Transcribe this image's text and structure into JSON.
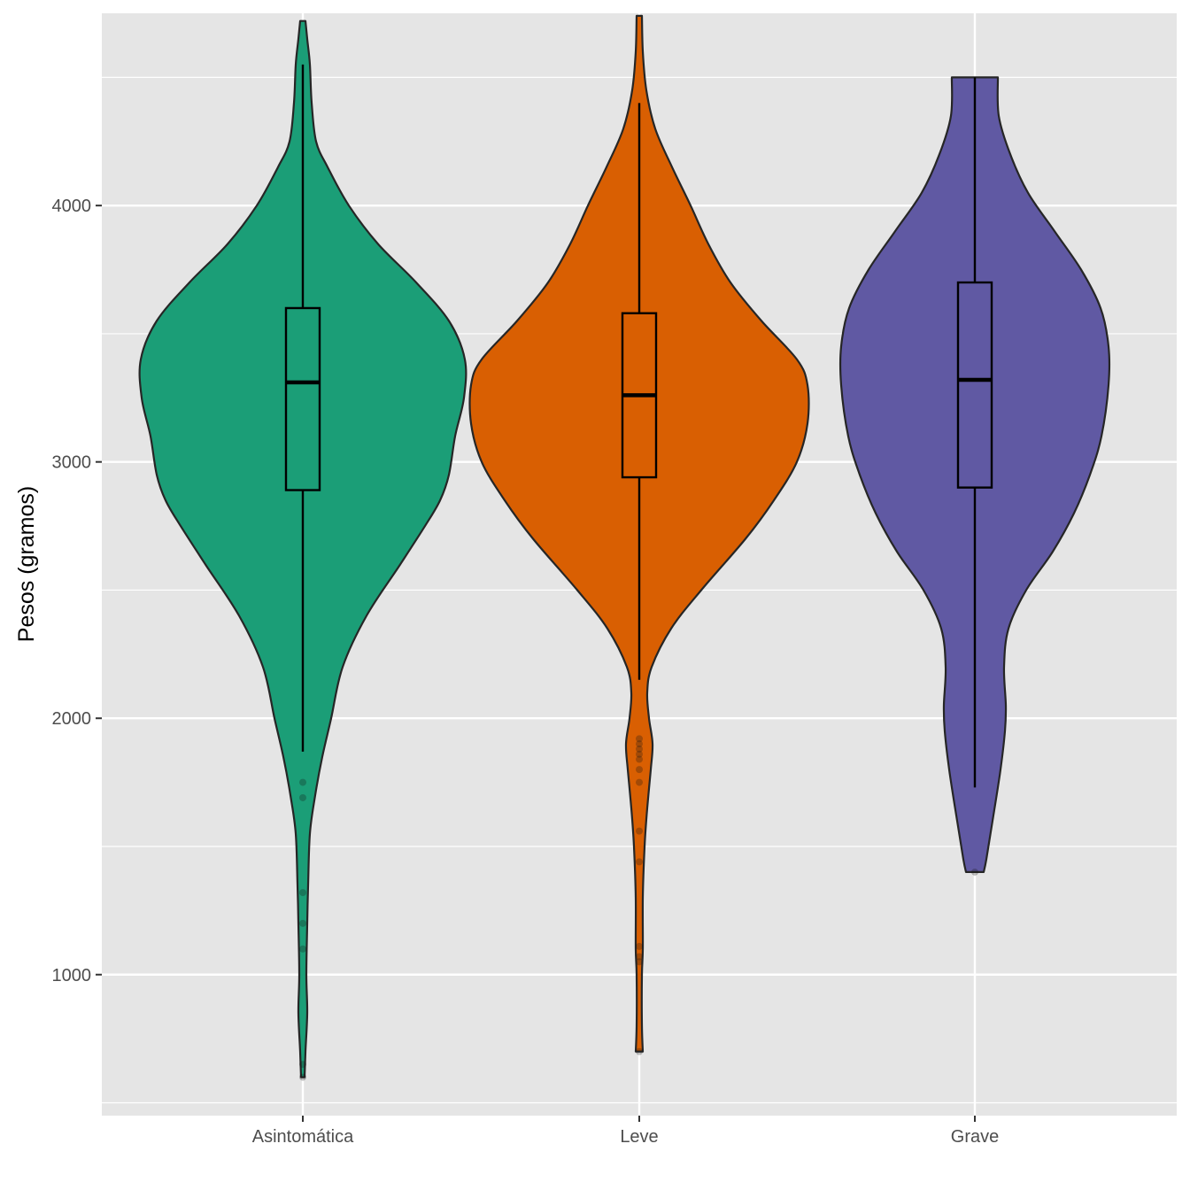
{
  "chart_data": {
    "type": "violin",
    "title": "",
    "xlabel": "",
    "ylabel": "Pesos (gramos)",
    "ylim": [
      450,
      4750
    ],
    "yticks": [
      1000,
      2000,
      3000,
      4000
    ],
    "y_minor_gridlines": [
      500,
      1500,
      2500,
      3500,
      4500
    ],
    "grid": true,
    "legend": "none",
    "background_color": "#E5E5E5",
    "grid_color": "#FFFFFF",
    "categories": [
      "Asintomática",
      "Leve",
      "Grave"
    ],
    "series": [
      {
        "category": "Asintomática",
        "color": "#1B9E77",
        "box": {
          "min": 1870,
          "q1": 2890,
          "median": 3310,
          "q3": 3600,
          "max": 4550
        },
        "outliers": [
          1750,
          1690,
          1320,
          1200,
          1100,
          650,
          600
        ],
        "density": [
          [
            600,
            2
          ],
          [
            700,
            3
          ],
          [
            850,
            5
          ],
          [
            1000,
            4
          ],
          [
            1200,
            5
          ],
          [
            1350,
            6
          ],
          [
            1550,
            8
          ],
          [
            1700,
            14
          ],
          [
            1850,
            22
          ],
          [
            2000,
            32
          ],
          [
            2200,
            45
          ],
          [
            2400,
            72
          ],
          [
            2600,
            110
          ],
          [
            2750,
            138
          ],
          [
            2850,
            155
          ],
          [
            2950,
            165
          ],
          [
            3100,
            172
          ],
          [
            3250,
            182
          ],
          [
            3400,
            183
          ],
          [
            3550,
            165
          ],
          [
            3700,
            128
          ],
          [
            3850,
            85
          ],
          [
            4000,
            52
          ],
          [
            4150,
            28
          ],
          [
            4250,
            15
          ],
          [
            4400,
            10
          ],
          [
            4550,
            8
          ],
          [
            4650,
            5
          ],
          [
            4720,
            3
          ]
        ]
      },
      {
        "category": "Leve",
        "color": "#D95F02",
        "box": {
          "min": 2150,
          "q1": 2940,
          "median": 3260,
          "q3": 3580,
          "max": 4400
        },
        "outliers": [
          1920,
          1900,
          1880,
          1860,
          1840,
          1800,
          1750,
          1560,
          1440,
          1110,
          1070,
          1050,
          700
        ],
        "density": [
          [
            700,
            4
          ],
          [
            800,
            3
          ],
          [
            1000,
            3
          ],
          [
            1100,
            4
          ],
          [
            1300,
            4
          ],
          [
            1500,
            6
          ],
          [
            1650,
            9
          ],
          [
            1800,
            13
          ],
          [
            1900,
            15
          ],
          [
            2000,
            11
          ],
          [
            2100,
            9
          ],
          [
            2200,
            14
          ],
          [
            2350,
            36
          ],
          [
            2500,
            70
          ],
          [
            2700,
            120
          ],
          [
            2850,
            152
          ],
          [
            3000,
            178
          ],
          [
            3150,
            190
          ],
          [
            3300,
            190
          ],
          [
            3400,
            178
          ],
          [
            3550,
            138
          ],
          [
            3700,
            103
          ],
          [
            3850,
            78
          ],
          [
            4000,
            58
          ],
          [
            4150,
            37
          ],
          [
            4300,
            18
          ],
          [
            4450,
            8
          ],
          [
            4600,
            4
          ],
          [
            4740,
            3
          ]
        ]
      },
      {
        "category": "Grave",
        "color": "#6059A3",
        "box": {
          "min": 1730,
          "q1": 2900,
          "median": 3320,
          "q3": 3700,
          "max": 4500
        },
        "outliers": [
          1400
        ],
        "density": [
          [
            1400,
            10
          ],
          [
            1450,
            13
          ],
          [
            1600,
            20
          ],
          [
            1800,
            29
          ],
          [
            1950,
            34
          ],
          [
            2050,
            35
          ],
          [
            2200,
            33
          ],
          [
            2350,
            38
          ],
          [
            2500,
            58
          ],
          [
            2650,
            88
          ],
          [
            2800,
            112
          ],
          [
            2950,
            130
          ],
          [
            3100,
            143
          ],
          [
            3300,
            151
          ],
          [
            3450,
            151
          ],
          [
            3600,
            142
          ],
          [
            3750,
            120
          ],
          [
            3900,
            90
          ],
          [
            4050,
            60
          ],
          [
            4200,
            40
          ],
          [
            4350,
            27
          ],
          [
            4500,
            26
          ]
        ]
      }
    ]
  }
}
